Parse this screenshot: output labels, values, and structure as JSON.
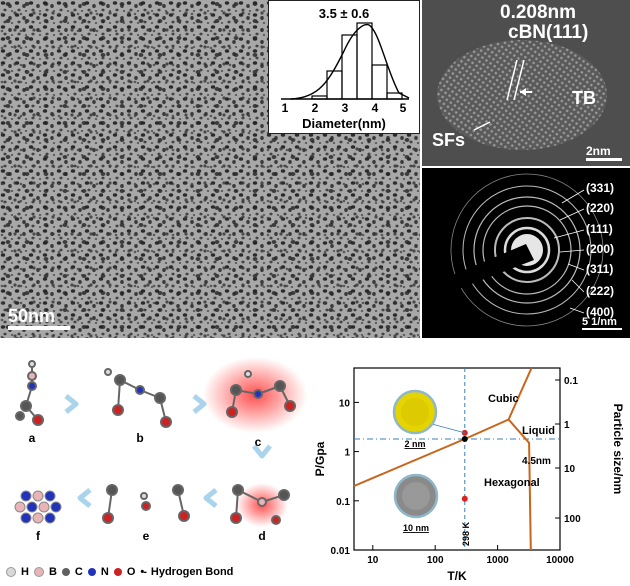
{
  "tem": {
    "scale_bar": "50nm",
    "inset": {
      "title": "3.5 ± 0.6",
      "xlabel": "Diameter(nm)",
      "ticks": [
        "1",
        "2",
        "3",
        "4",
        "5"
      ]
    }
  },
  "hrtem": {
    "spacing": "0.208nm",
    "plane": "cBN(111)",
    "tb": "TB",
    "sfs": "SFs",
    "scale_bar": "2nm"
  },
  "saed": {
    "rings": [
      "(331)",
      "(220)",
      "(111)",
      "(200)",
      "(311)",
      "(222)",
      "(400)"
    ],
    "scale_bar": "5 1/nm"
  },
  "mechanism": {
    "steps": [
      "a",
      "b",
      "c",
      "d",
      "e",
      "f"
    ],
    "legend": [
      {
        "symbol": "H",
        "color": "#d8d8d8"
      },
      {
        "symbol": "B",
        "color": "#e8b4b8"
      },
      {
        "symbol": "C",
        "color": "#606060"
      },
      {
        "symbol": "N",
        "color": "#2233bb"
      },
      {
        "symbol": "O",
        "color": "#cc2222"
      }
    ],
    "hbond_label": "Hydrogen Bond"
  },
  "chart_data": {
    "type": "phase-diagram",
    "xlabel": "T/K",
    "ylabel": "P/Gpa",
    "y2label": "Particle size/nm",
    "x_ticks": [
      "10",
      "100",
      "1000",
      "10000"
    ],
    "y_ticks": [
      "0.01",
      "0.1",
      "1",
      "10"
    ],
    "y2_ticks": [
      "0.1",
      "1",
      "10",
      "100"
    ],
    "xlim": [
      5,
      10000
    ],
    "ylim": [
      0.01,
      50
    ],
    "x_scale": "log",
    "y_scale": "log",
    "regions": [
      "Cubic",
      "Liquid",
      "Hexagonal"
    ],
    "annotations": [
      "4.5nm",
      "298 K",
      "2 nm",
      "10 nm"
    ],
    "points": [
      {
        "x": 298,
        "y": 1.8,
        "color": "#000000"
      },
      {
        "x": 298,
        "y": 2.4,
        "color": "#dd2222"
      },
      {
        "x": 298,
        "y": 0.11,
        "color": "#dd2222"
      }
    ],
    "boundaries": [
      {
        "name": "cubic-hexagonal",
        "points": [
          [
            5,
            0.2
          ],
          [
            298,
            1.8
          ],
          [
            1500,
            4.5
          ]
        ]
      },
      {
        "name": "cubic-liquid",
        "points": [
          [
            1500,
            4.5
          ],
          [
            3500,
            50
          ]
        ]
      },
      {
        "name": "hexagonal-liquid",
        "points": [
          [
            1500,
            4.5
          ],
          [
            3200,
            1.5
          ],
          [
            3300,
            0.1
          ],
          [
            3400,
            0.01
          ]
        ]
      }
    ],
    "guide_lines": [
      {
        "axis": "x",
        "value": 298
      },
      {
        "axis": "y",
        "value": 1.8
      }
    ]
  }
}
